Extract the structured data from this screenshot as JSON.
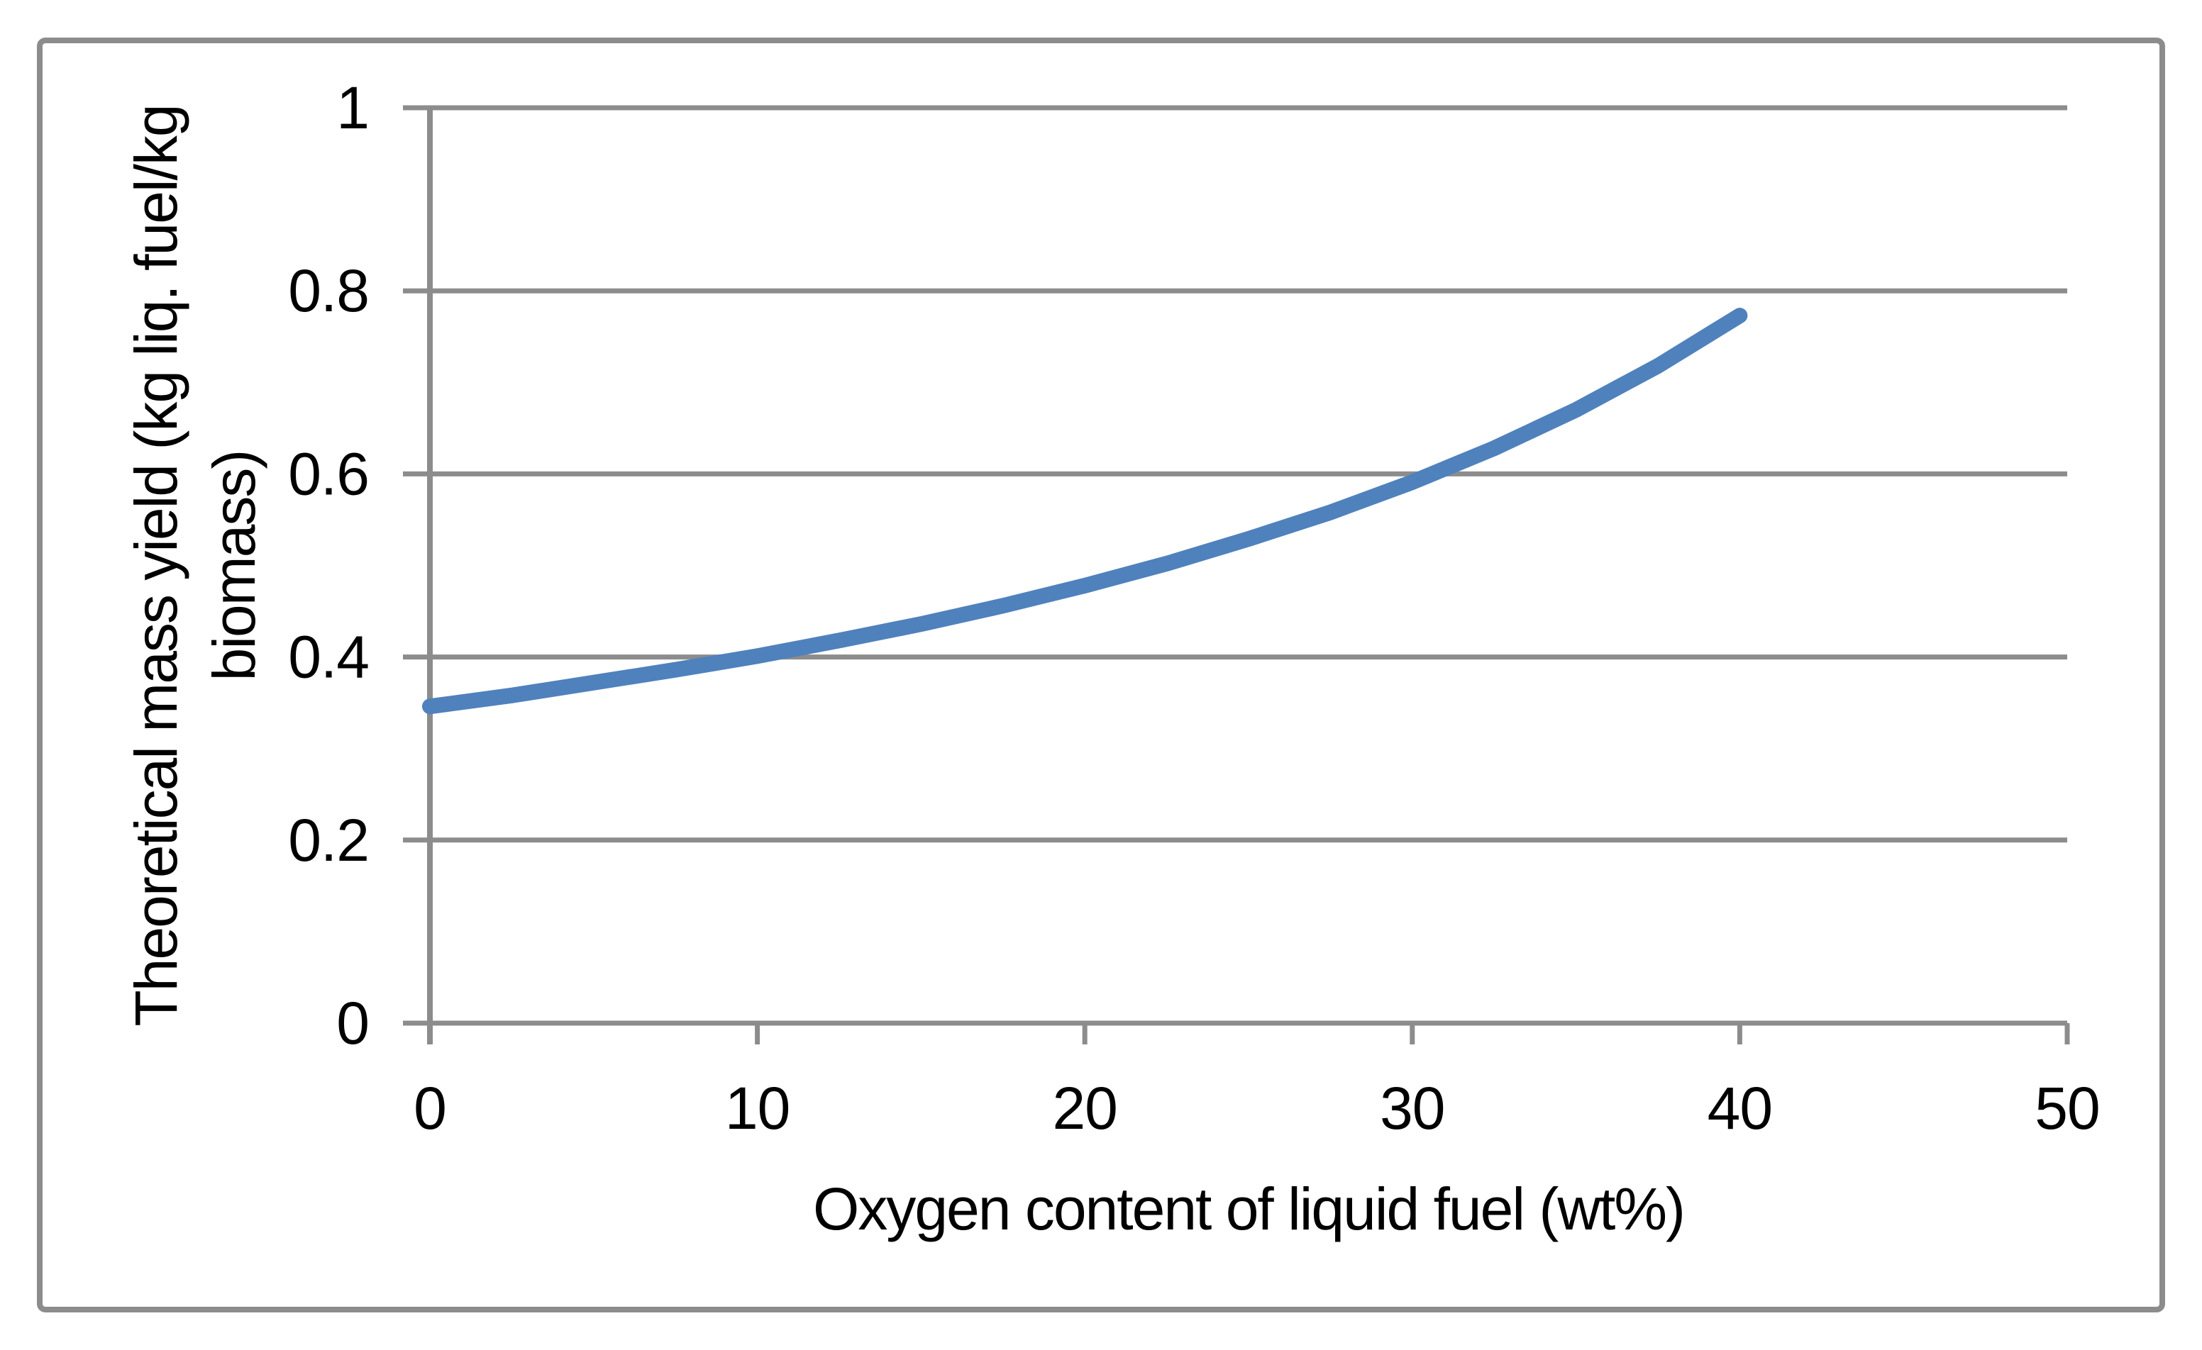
{
  "chart_data": {
    "type": "line",
    "title": "",
    "xlabel": "Oxygen content of liquid fuel (wt%)",
    "ylabel": "Theoretical mass yield (kg liq. fuel/kg biomass)",
    "ylabel_lines": [
      "Theoretical mass yield (kg liq. fuel/kg",
      "biomass)"
    ],
    "xlim": [
      0,
      50
    ],
    "ylim": [
      0,
      1
    ],
    "xticks": {
      "values": [
        0,
        10,
        20,
        30,
        40,
        50
      ],
      "labels": [
        "0",
        "10",
        "20",
        "30",
        "40",
        "50"
      ]
    },
    "yticks": {
      "values": [
        0,
        0.2,
        0.4,
        0.6,
        0.8,
        1
      ],
      "labels": [
        "0",
        "0.2",
        "0.4",
        "0.6",
        "0.8",
        "1"
      ]
    },
    "grid": "horizontal-only",
    "legend": "none",
    "colors": {
      "series": "#4F81BD",
      "axis": "#8C8C8C",
      "border": "#8C8C8C",
      "text": "#000000",
      "background": "#FFFFFF"
    },
    "series": [
      {
        "name": "Theoretical mass yield",
        "x": [
          0,
          2.5,
          5,
          7.5,
          10,
          12.5,
          15,
          17.5,
          20,
          22.5,
          25,
          27.5,
          30,
          32.5,
          35,
          37.5,
          40
        ],
        "y": [
          0.346,
          0.358,
          0.372,
          0.386,
          0.401,
          0.418,
          0.436,
          0.456,
          0.478,
          0.502,
          0.529,
          0.558,
          0.591,
          0.628,
          0.67,
          0.718,
          0.773
        ]
      }
    ]
  }
}
